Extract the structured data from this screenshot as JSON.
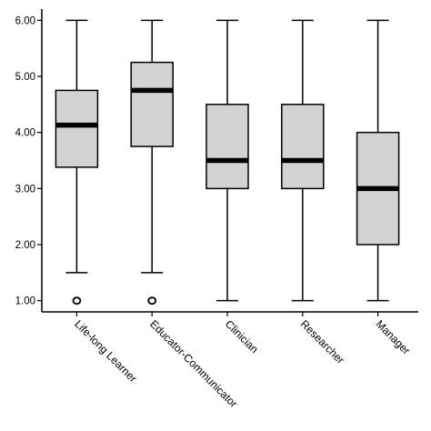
{
  "chart_data": {
    "type": "boxplot",
    "title": "",
    "xlabel": "",
    "ylabel": "",
    "ylim": [
      0.8,
      6.2
    ],
    "yticks": [
      1.0,
      2.0,
      3.0,
      4.0,
      5.0,
      6.0
    ],
    "ytick_labels": [
      "1.00",
      "2.00",
      "3.00",
      "4.00",
      "5.00",
      "6.00"
    ],
    "grid": false,
    "box_fill": "#d3d3d3",
    "categories": [
      "Life-long Learner",
      "Educator-Communicator",
      "Clinician",
      "Researcher",
      "Manager"
    ],
    "boxes": [
      {
        "category": "Life-long Learner",
        "min": 1.5,
        "q1": 3.38,
        "median": 4.13,
        "q3": 4.75,
        "max": 6.0,
        "outliers": [
          1.0
        ]
      },
      {
        "category": "Educator-Communicator",
        "min": 1.5,
        "q1": 3.75,
        "median": 4.75,
        "q3": 5.25,
        "max": 6.0,
        "outliers": [
          1.0
        ]
      },
      {
        "category": "Clinician",
        "min": 1.0,
        "q1": 3.0,
        "median": 3.5,
        "q3": 4.5,
        "max": 6.0,
        "outliers": []
      },
      {
        "category": "Researcher",
        "min": 1.0,
        "q1": 3.0,
        "median": 3.5,
        "q3": 4.5,
        "max": 6.0,
        "outliers": []
      },
      {
        "category": "Manager",
        "min": 1.0,
        "q1": 2.0,
        "median": 3.0,
        "q3": 4.0,
        "max": 6.0,
        "outliers": []
      }
    ]
  }
}
